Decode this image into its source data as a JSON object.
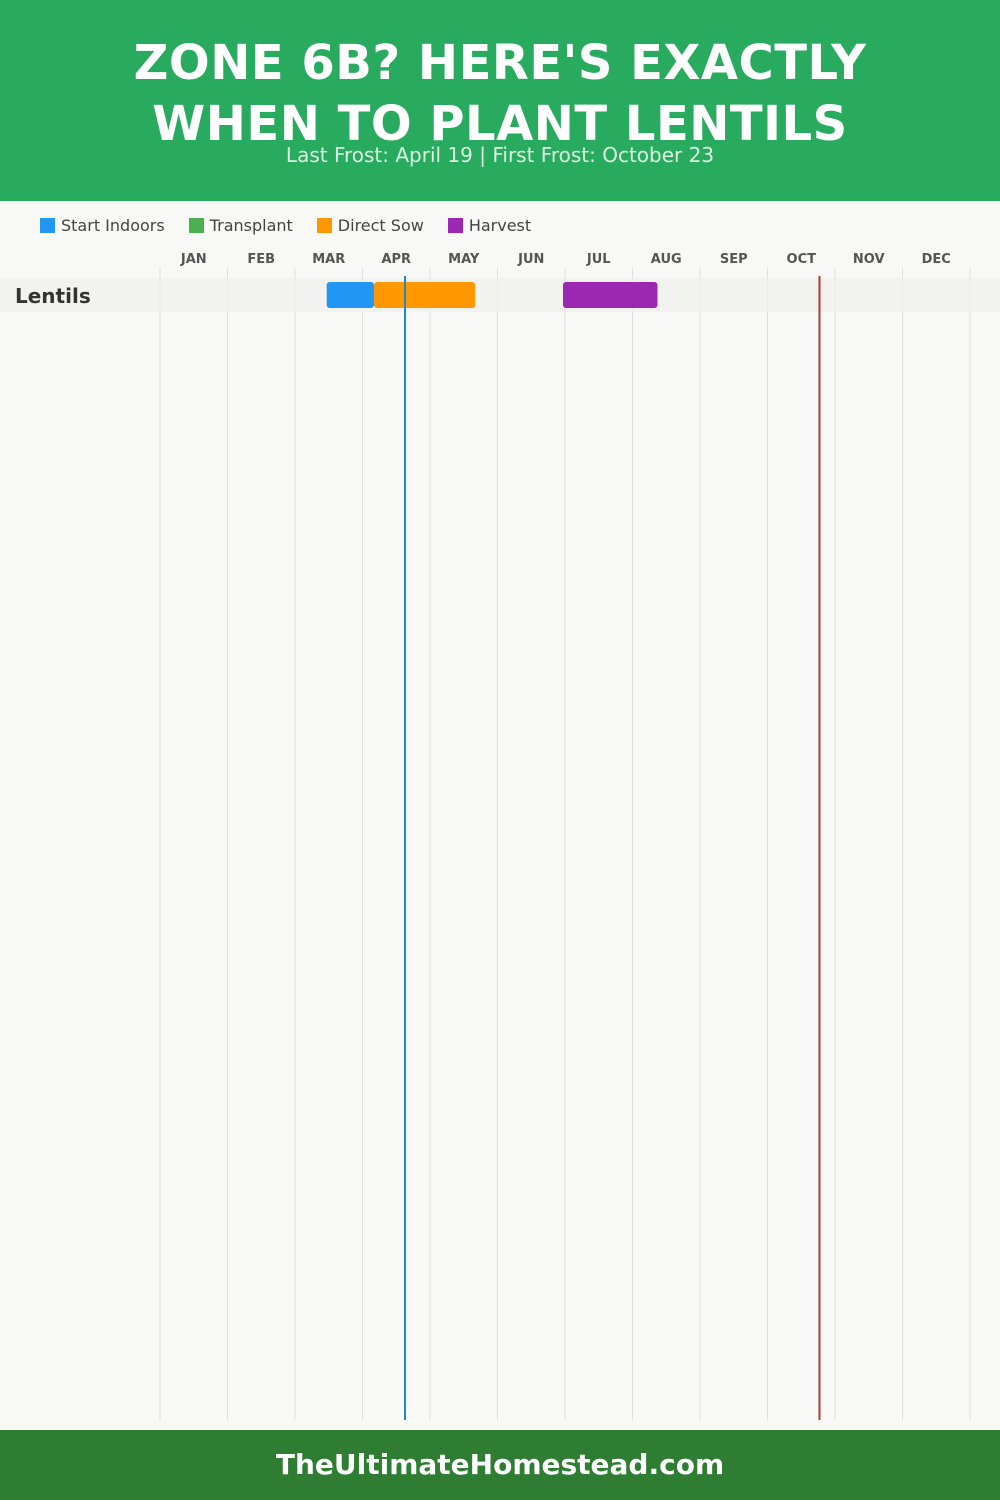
{
  "header": {
    "title_line1": "ZONE 6B? HERE'S EXACTLY",
    "title_line2": "WHEN TO PLANT LENTILS",
    "subtitle": "Last Frost: April 19 | First Frost: October 23",
    "background": "#29ab5f"
  },
  "legend": [
    {
      "label": "Start Indoors",
      "color": "#2196f3"
    },
    {
      "label": "Transplant",
      "color": "#4caf50"
    },
    {
      "label": "Direct Sow",
      "color": "#ff9800"
    },
    {
      "label": "Harvest",
      "color": "#9c27b0"
    }
  ],
  "chart_data": {
    "type": "gantt",
    "months": [
      "JAN",
      "FEB",
      "MAR",
      "APR",
      "MAY",
      "JUN",
      "JUL",
      "AUG",
      "SEP",
      "OCT",
      "NOV",
      "DEC"
    ],
    "rows": [
      {
        "crop": "Lentils",
        "segments": [
          {
            "phase": "Start Indoors",
            "start_month": 2.47,
            "end_month": 3.17,
            "color": "#2196f3"
          },
          {
            "phase": "Direct Sow",
            "start_month": 3.17,
            "end_month": 4.67,
            "color": "#ff9800"
          },
          {
            "phase": "Harvest",
            "start_month": 5.97,
            "end_month": 7.37,
            "color": "#9c27b0"
          }
        ]
      }
    ],
    "markers": [
      {
        "name": "Last Frost",
        "month_value": 3.63,
        "color": "#1e88c8"
      },
      {
        "name": "First Frost",
        "month_value": 9.77,
        "color": "#b03a2e"
      }
    ]
  },
  "footer": {
    "text": "TheUltimateHomestead.com",
    "background": "#2e7d32"
  }
}
